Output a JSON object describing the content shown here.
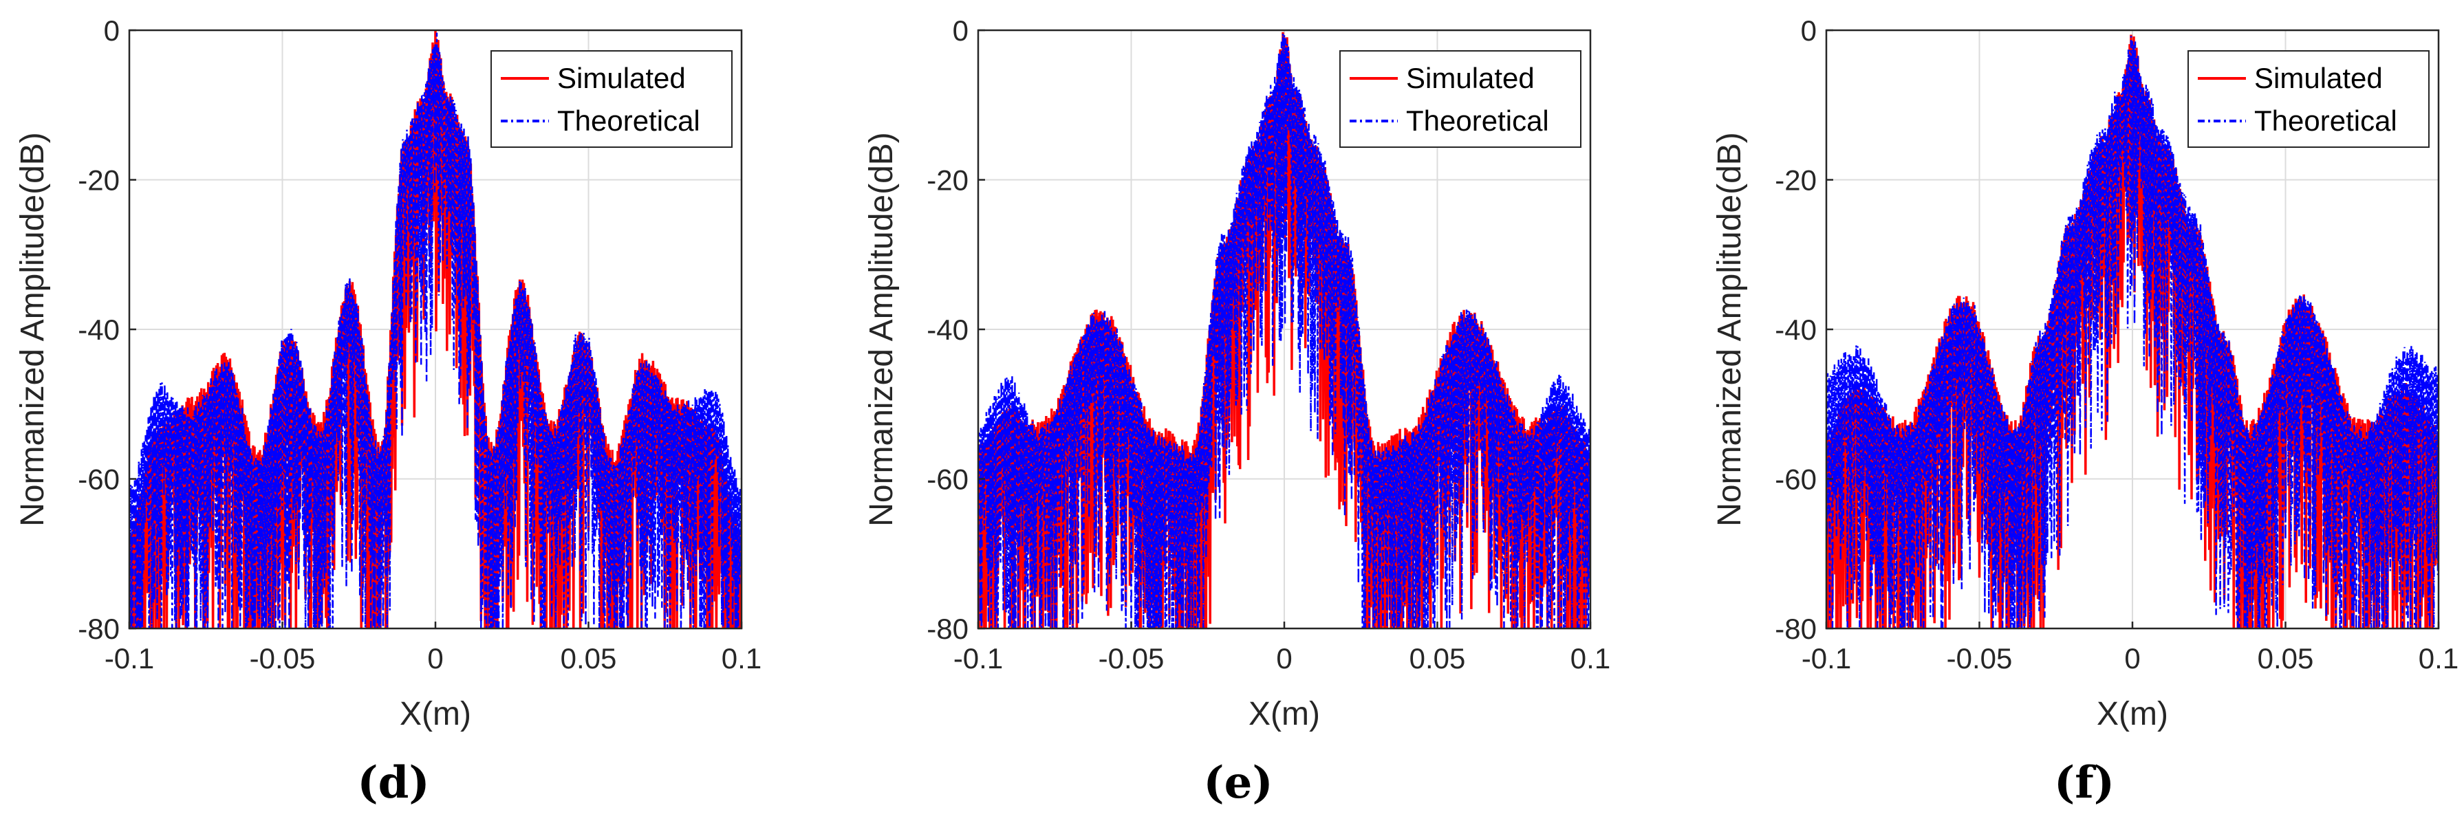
{
  "chart_data": [
    {
      "type": "line",
      "panel": "(d)",
      "xlabel": "X(m)",
      "ylabel": "Normanized Amplitude(dB)",
      "xlim": [
        -0.1,
        0.1
      ],
      "ylim": [
        -80,
        0
      ],
      "xticks": [
        -0.1,
        -0.05,
        0,
        0.05,
        0.1
      ],
      "xtick_labels": [
        "-0.1",
        "-0.05",
        "0",
        "0.05",
        "0.1"
      ],
      "yticks": [
        0,
        -20,
        -40,
        -60,
        -80
      ],
      "ytick_labels": [
        "0",
        "-20",
        "-40",
        "-60",
        "-80"
      ],
      "grid": true,
      "legend_position": "top-right",
      "series": [
        {
          "name": "Simulated",
          "color": "#ff0000",
          "style": "solid",
          "envelope_x": [
            -0.1,
            -0.09,
            -0.08,
            -0.068,
            -0.058,
            -0.048,
            -0.038,
            -0.028,
            -0.018,
            -0.01,
            -0.004,
            0,
            0.004,
            0.01,
            0.018,
            0.028,
            0.038,
            0.048,
            0.058,
            0.068,
            0.08,
            0.09,
            0.1
          ],
          "envelope_y": [
            -66,
            -52,
            -49,
            -43,
            -56,
            -40,
            -52,
            -33,
            -55,
            -14,
            -8,
            0,
            -8,
            -14,
            -55,
            -33,
            -52,
            -40,
            -56,
            -43,
            -49,
            -52,
            -66
          ]
        },
        {
          "name": "Theoretical",
          "color": "#0000ff",
          "style": "dashdot",
          "envelope_x": [
            -0.1,
            -0.09,
            -0.08,
            -0.068,
            -0.058,
            -0.048,
            -0.038,
            -0.028,
            -0.018,
            -0.01,
            -0.004,
            0,
            0.004,
            0.01,
            0.018,
            0.028,
            0.038,
            0.048,
            0.058,
            0.068,
            0.08,
            0.09,
            0.1
          ],
          "envelope_y": [
            -60,
            -47,
            -50,
            -44,
            -57,
            -39,
            -53,
            -33,
            -56,
            -13,
            -8,
            0,
            -8,
            -13,
            -56,
            -33,
            -53,
            -39,
            -57,
            -44,
            -50,
            -47,
            -60
          ]
        }
      ]
    },
    {
      "type": "line",
      "panel": "(e)",
      "xlabel": "X(m)",
      "ylabel": "Normanized Amplitude(dB)",
      "xlim": [
        -0.1,
        0.1
      ],
      "ylim": [
        -80,
        0
      ],
      "xticks": [
        -0.1,
        -0.05,
        0,
        0.05,
        0.1
      ],
      "xtick_labels": [
        "-0.1",
        "-0.05",
        "0",
        "0.05",
        "0.1"
      ],
      "yticks": [
        0,
        -20,
        -40,
        -60,
        -80
      ],
      "ytick_labels": [
        "0",
        "-20",
        "-40",
        "-60",
        "-80"
      ],
      "grid": true,
      "legend_position": "top-right",
      "series": [
        {
          "name": "Simulated",
          "color": "#ff0000",
          "style": "solid",
          "envelope_x": [
            -0.1,
            -0.09,
            -0.08,
            -0.06,
            -0.04,
            -0.03,
            -0.02,
            -0.01,
            -0.004,
            0,
            0.004,
            0.01,
            0.02,
            0.03,
            0.04,
            0.06,
            0.08,
            0.09,
            0.1
          ],
          "envelope_y": [
            -55,
            -50,
            -52,
            -37,
            -53,
            -55,
            -28,
            -15,
            -8,
            0,
            -8,
            -15,
            -28,
            -55,
            -53,
            -37,
            -52,
            -50,
            -55
          ]
        },
        {
          "name": "Theoretical",
          "color": "#0000ff",
          "style": "dashdot",
          "envelope_x": [
            -0.1,
            -0.09,
            -0.08,
            -0.06,
            -0.04,
            -0.03,
            -0.02,
            -0.01,
            -0.004,
            0,
            0.004,
            0.01,
            0.02,
            0.03,
            0.04,
            0.06,
            0.08,
            0.09,
            0.1
          ],
          "envelope_y": [
            -52,
            -46,
            -53,
            -37,
            -54,
            -56,
            -27,
            -14,
            -7,
            0,
            -7,
            -14,
            -27,
            -56,
            -54,
            -37,
            -53,
            -46,
            -52
          ]
        }
      ]
    },
    {
      "type": "line",
      "panel": "(f)",
      "xlabel": "X(m)",
      "ylabel": "Normanized Amplitude(dB)",
      "xlim": [
        -0.1,
        0.1
      ],
      "ylim": [
        -80,
        0
      ],
      "xticks": [
        -0.1,
        -0.05,
        0,
        0.05,
        0.1
      ],
      "xtick_labels": [
        "-0.1",
        "-0.05",
        "0",
        "0.05",
        "0.1"
      ],
      "yticks": [
        0,
        -20,
        -40,
        -60,
        -80
      ],
      "ytick_labels": [
        "0",
        "-20",
        "-40",
        "-60",
        "-80"
      ],
      "grid": true,
      "legend_position": "top-right",
      "series": [
        {
          "name": "Simulated",
          "color": "#ff0000",
          "style": "solid",
          "envelope_x": [
            -0.1,
            -0.09,
            -0.075,
            -0.055,
            -0.038,
            -0.03,
            -0.02,
            -0.01,
            -0.004,
            0,
            0.004,
            0.01,
            0.02,
            0.03,
            0.038,
            0.055,
            0.075,
            0.09,
            0.1
          ],
          "envelope_y": [
            -53,
            -47,
            -52,
            -35,
            -52,
            -40,
            -25,
            -14,
            -8,
            0,
            -8,
            -14,
            -25,
            -40,
            -52,
            -35,
            -52,
            -47,
            -53
          ]
        },
        {
          "name": "Theoretical",
          "color": "#0000ff",
          "style": "dashdot",
          "envelope_x": [
            -0.1,
            -0.09,
            -0.075,
            -0.055,
            -0.038,
            -0.03,
            -0.02,
            -0.01,
            -0.004,
            0,
            0.004,
            0.01,
            0.02,
            0.03,
            0.038,
            0.055,
            0.075,
            0.09,
            0.1
          ],
          "envelope_y": [
            -45,
            -42,
            -53,
            -35,
            -53,
            -40,
            -24,
            -13,
            -7,
            0,
            -7,
            -13,
            -24,
            -40,
            -53,
            -35,
            -53,
            -42,
            -45
          ]
        }
      ]
    }
  ],
  "legend": {
    "simulated_label": "Simulated",
    "theoretical_label": "Theoretical"
  },
  "captions": [
    "(d)",
    "(e)",
    "(f)"
  ]
}
